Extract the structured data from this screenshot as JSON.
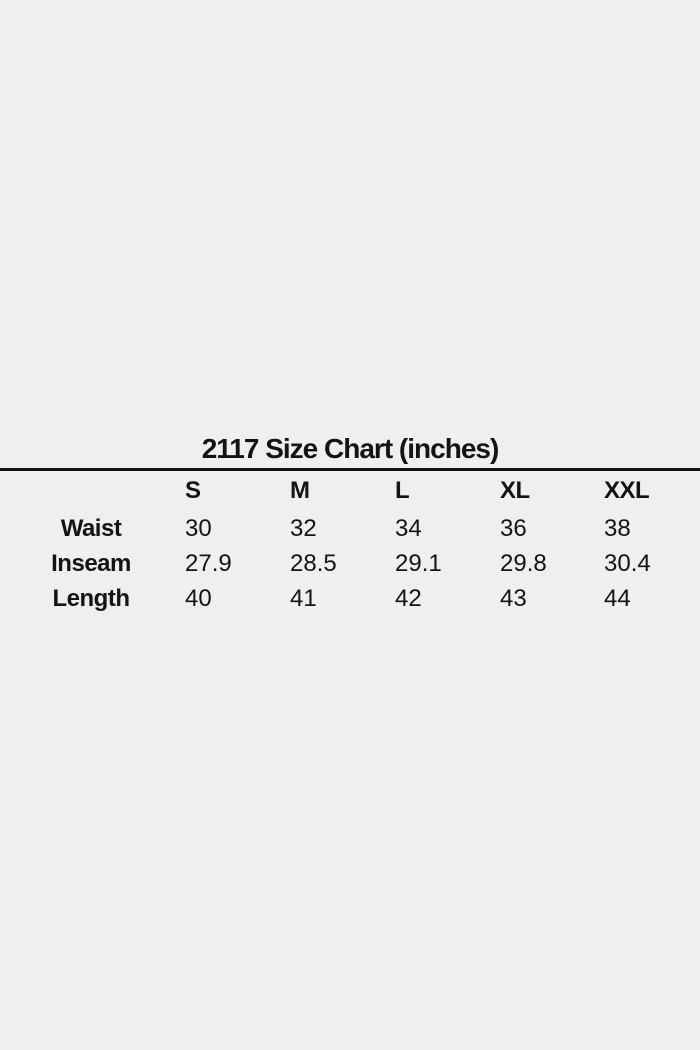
{
  "page": {
    "background_color": "#efefef",
    "text_color": "#131313",
    "divider_color": "#131313"
  },
  "chart_data": {
    "type": "table",
    "title": "2117 Size Chart (inches)",
    "unit": "inches",
    "columns": [
      "S",
      "M",
      "L",
      "XL",
      "XXL"
    ],
    "rows": [
      {
        "label": "Waist",
        "values": [
          "30",
          "32",
          "34",
          "36",
          "38"
        ]
      },
      {
        "label": "Inseam",
        "values": [
          "27.9",
          "28.5",
          "29.1",
          "29.8",
          "30.4"
        ]
      },
      {
        "label": "Length",
        "values": [
          "40",
          "41",
          "42",
          "43",
          "44"
        ]
      }
    ]
  }
}
